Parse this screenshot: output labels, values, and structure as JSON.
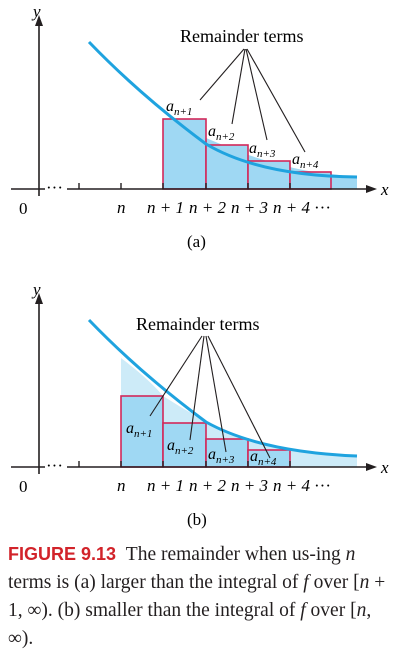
{
  "panel_a": {
    "y_label": "y",
    "x_label": "x",
    "origin_label": "0",
    "axis_dots": "···",
    "title": "Remainder terms",
    "tick_n": "n",
    "tick_n1": "n + 1",
    "tick_n2": "n + 2",
    "tick_n3": "n + 3",
    "tick_n4": "n + 4",
    "tick_more": "···",
    "term_base": "a",
    "term1_sub": "n+1",
    "term2_sub": "n+2",
    "term3_sub": "n+3",
    "term4_sub": "n+4",
    "panel_label": "(a)"
  },
  "panel_b": {
    "y_label": "y",
    "x_label": "x",
    "origin_label": "0",
    "axis_dots": "···",
    "title": "Remainder terms",
    "tick_n": "n",
    "tick_n1": "n + 1",
    "tick_n2": "n + 2",
    "tick_n3": "n + 3",
    "tick_n4": "n + 4",
    "tick_more": "···",
    "term_base": "a",
    "term1_sub": "n+1",
    "term2_sub": "n+2",
    "term3_sub": "n+3",
    "term4_sub": "n+4",
    "panel_label": "(b)"
  },
  "caption": {
    "label": "FIGURE 9.13",
    "t1": "The remainder when us-ing ",
    "n1": "n",
    "t2": " terms is (a) larger than the integral of ",
    "f1": "f",
    "t3": " over ",
    "int1_open": "[",
    "int1_a": "n",
    "int1_mid": " + 1, ∞).",
    "t4": " (b) smaller than the integral of ",
    "f2": "f",
    "t5": " over ",
    "int2_open": "[",
    "int2_a": "n",
    "int2_mid": ", ∞)."
  },
  "colors": {
    "curve": "#1fa3df",
    "fill": "#9fd8f3",
    "fill_light": "#cdebf8",
    "rect_stroke": "#d2285a",
    "axis": "#231f20"
  }
}
